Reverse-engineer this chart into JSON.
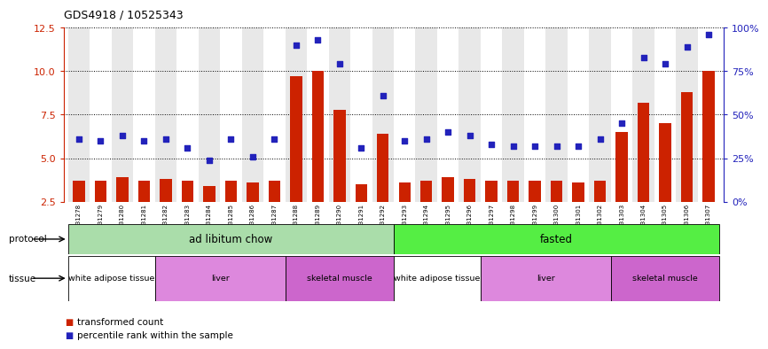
{
  "title": "GDS4918 / 10525343",
  "samples": [
    "GSM1131278",
    "GSM1131279",
    "GSM1131280",
    "GSM1131281",
    "GSM1131282",
    "GSM1131283",
    "GSM1131284",
    "GSM1131285",
    "GSM1131286",
    "GSM1131287",
    "GSM1131288",
    "GSM1131289",
    "GSM1131290",
    "GSM1131291",
    "GSM1131292",
    "GSM1131293",
    "GSM1131294",
    "GSM1131295",
    "GSM1131296",
    "GSM1131297",
    "GSM1131298",
    "GSM1131299",
    "GSM1131300",
    "GSM1131301",
    "GSM1131302",
    "GSM1131303",
    "GSM1131304",
    "GSM1131305",
    "GSM1131306",
    "GSM1131307"
  ],
  "bar_values": [
    3.7,
    3.7,
    3.9,
    3.7,
    3.8,
    3.7,
    3.4,
    3.7,
    3.6,
    3.7,
    9.7,
    10.0,
    7.8,
    3.5,
    6.4,
    3.6,
    3.7,
    3.9,
    3.8,
    3.7,
    3.7,
    3.7,
    3.7,
    3.6,
    3.7,
    6.5,
    8.2,
    7.0,
    8.8,
    10.0
  ],
  "dot_values": [
    6.1,
    6.0,
    6.3,
    6.0,
    6.1,
    5.6,
    4.9,
    6.1,
    5.1,
    6.1,
    11.5,
    11.8,
    10.4,
    5.6,
    8.6,
    6.0,
    6.1,
    6.5,
    6.3,
    5.8,
    5.7,
    5.7,
    5.7,
    5.7,
    6.1,
    7.0,
    10.8,
    10.4,
    11.4,
    12.1
  ],
  "bar_color": "#cc2200",
  "dot_color": "#2222bb",
  "ylim": [
    2.5,
    12.5
  ],
  "yticks_left": [
    2.5,
    5.0,
    7.5,
    10.0,
    12.5
  ],
  "ytick_labels_right": [
    "0%",
    "25%",
    "50%",
    "75%",
    "100%"
  ],
  "protocol_label_1": "ad libitum chow",
  "protocol_label_2": "fasted",
  "protocol_color_1": "#aaddaa",
  "protocol_color_2": "#55ee44",
  "tissue_boxes": [
    {
      "label": "white adipose tissue",
      "start": 0,
      "end": 3,
      "color": "#ffffff"
    },
    {
      "label": "liver",
      "start": 4,
      "end": 9,
      "color": "#dd88dd"
    },
    {
      "label": "skeletal muscle",
      "start": 10,
      "end": 14,
      "color": "#cc66cc"
    },
    {
      "label": "white adipose tissue",
      "start": 15,
      "end": 18,
      "color": "#ffffff"
    },
    {
      "label": "liver",
      "start": 19,
      "end": 24,
      "color": "#dd88dd"
    },
    {
      "label": "skeletal muscle",
      "start": 25,
      "end": 29,
      "color": "#cc66cc"
    }
  ],
  "col_colors": [
    "#e8e8e8",
    "#ffffff"
  ],
  "legend_label_bar": "transformed count",
  "legend_label_dot": "percentile rank within the sample"
}
